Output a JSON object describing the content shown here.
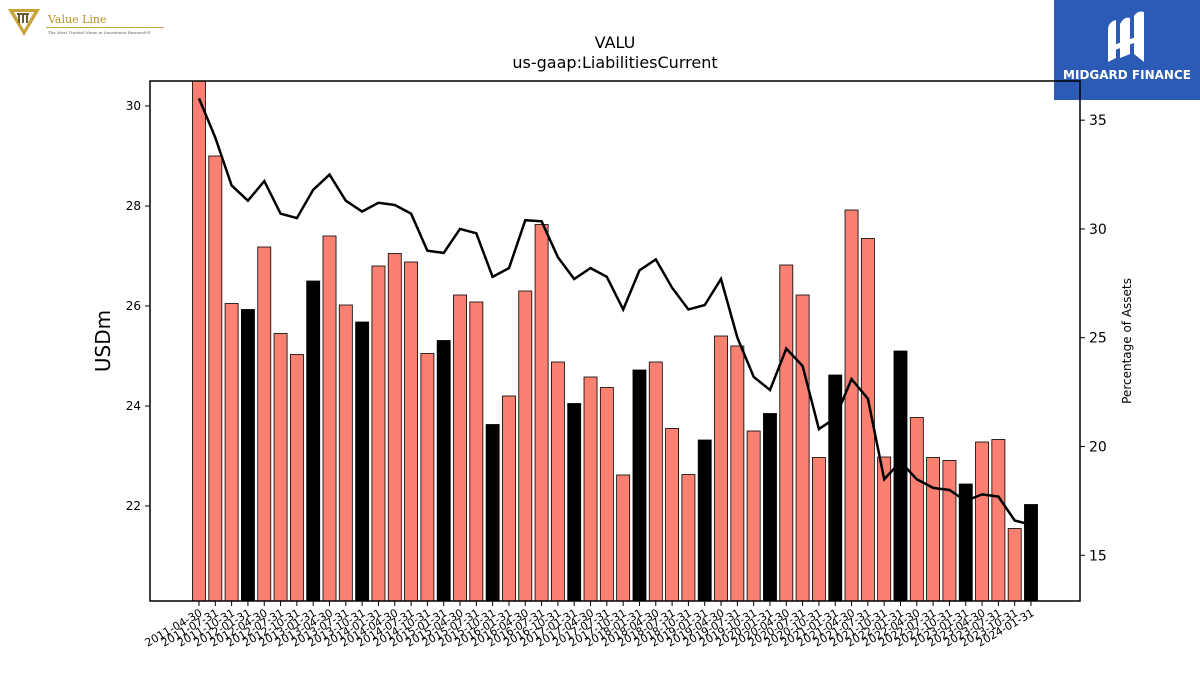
{
  "brand_left": {
    "name": "Value Line",
    "tagline": "The Most Trusted Name in Investment Research®"
  },
  "brand_right": {
    "name": "MIDGARD FINANCE"
  },
  "colors": {
    "bar_default": "#fa8072",
    "bar_highlight": "#000000",
    "line": "#000000",
    "brand_right_bg": "#2b5bb5",
    "brand_left_gold": "#b8902a"
  },
  "chart_data": {
    "type": "bar",
    "title": "VALU",
    "subtitle": "us-gaap:LiabilitiesCurrent",
    "ylabel": "USDm",
    "y2label": "Percentage of Assets",
    "ylim": [
      20.1,
      30.5
    ],
    "y2lim": [
      12.9,
      36.8
    ],
    "yticks": [
      22,
      24,
      26,
      28,
      30
    ],
    "y2ticks": [
      15,
      20,
      25,
      30,
      35
    ],
    "categories": [
      "2011-04-30",
      "2011-07-31",
      "2011-10-31",
      "2012-01-31",
      "2012-04-30",
      "2012-07-31",
      "2012-10-31",
      "2013-01-31",
      "2013-04-30",
      "2013-07-31",
      "2013-10-31",
      "2014-01-31",
      "2014-04-30",
      "2014-07-31",
      "2014-10-31",
      "2015-01-31",
      "2015-04-30",
      "2015-07-31",
      "2015-10-31",
      "2016-01-31",
      "2016-04-30",
      "2016-07-31",
      "2016-10-31",
      "2017-01-31",
      "2017-04-30",
      "2017-07-31",
      "2017-10-31",
      "2018-01-31",
      "2018-04-30",
      "2018-07-31",
      "2018-10-31",
      "2019-01-31",
      "2019-04-30",
      "2019-07-31",
      "2019-10-31",
      "2020-01-31",
      "2020-04-30",
      "2020-07-31",
      "2020-10-31",
      "2021-01-31",
      "2021-04-30",
      "2021-07-31",
      "2021-10-31",
      "2022-01-31",
      "2022-04-30",
      "2022-07-31",
      "2022-10-31",
      "2023-01-31",
      "2023-04-30",
      "2023-07-31",
      "2023-10-31",
      "2024-01-31"
    ],
    "tick_labels": [
      "2011-04-30",
      "2011-07-31",
      "2011-10-31",
      "2012-01-31",
      "2012-04-30",
      "2012-07-31",
      "2012-10-31",
      "2013-01-31",
      "2013-04-30",
      "2013-07-31",
      "2013-10-31",
      "2014-01-31",
      "2014-04-30",
      "2014-07-31",
      "2014-10-31",
      "2015-01-31",
      "2015-04-30",
      "2015-07-31",
      "2015-10-31",
      "2016-01-31",
      "2016-04-30",
      "2016-07-31",
      "2016-10-31",
      "2017-01-31",
      "2017-04-30",
      "2017-07-31",
      "2017-10-31",
      "2018-01-31",
      "2018-04-30",
      "2018-07-31",
      "2018-10-31",
      "2019-01-31",
      "2019-04-30",
      "2019-07-31",
      "2019-10-31",
      "2020-01-31",
      "2020-04-30",
      "2020-07-31",
      "2020-10-31",
      "2021-01-31",
      "2021-04-30",
      "2021-07-31",
      "2021-10-31",
      "2022-01-31",
      "2022-04-30",
      "2022-07-31",
      "2022-10-31",
      "2023-01-31",
      "2023-04-30",
      "2023-07-31",
      "2023-10-31",
      "2024-01-31"
    ],
    "series": [
      {
        "kind": "bar",
        "axis": "left",
        "values": [
          30.5,
          29.0,
          26.05,
          25.93,
          27.18,
          25.45,
          25.03,
          26.5,
          27.4,
          26.02,
          25.68,
          26.8,
          27.05,
          26.88,
          25.05,
          25.31,
          26.22,
          26.08,
          23.63,
          24.2,
          26.3,
          27.63,
          24.88,
          24.05,
          24.58,
          24.37,
          22.62,
          24.72,
          24.88,
          23.55,
          22.63,
          23.32,
          25.4,
          25.2,
          23.5,
          23.85,
          26.82,
          26.22,
          22.97,
          24.62,
          27.92,
          27.35,
          22.98,
          25.1,
          23.77,
          22.97,
          22.91,
          22.44,
          23.28,
          23.33,
          21.55,
          22.03
        ],
        "highlight": [
          false,
          false,
          false,
          true,
          false,
          false,
          false,
          true,
          false,
          false,
          true,
          false,
          false,
          false,
          false,
          true,
          false,
          false,
          true,
          false,
          false,
          false,
          false,
          true,
          false,
          false,
          false,
          true,
          false,
          false,
          false,
          true,
          false,
          false,
          false,
          true,
          false,
          false,
          false,
          true,
          false,
          false,
          false,
          true,
          false,
          false,
          false,
          true,
          false,
          false,
          false,
          true
        ]
      },
      {
        "kind": "line",
        "axis": "right",
        "values": [
          36.0,
          34.2,
          32.0,
          31.3,
          32.2,
          30.7,
          30.5,
          31.8,
          32.5,
          31.3,
          30.8,
          31.2,
          31.1,
          30.7,
          29.0,
          28.9,
          30.0,
          29.8,
          27.8,
          28.2,
          30.4,
          30.35,
          28.7,
          27.7,
          28.2,
          27.8,
          26.3,
          28.1,
          28.6,
          27.3,
          26.3,
          26.5,
          27.7,
          25.0,
          23.2,
          22.6,
          24.5,
          23.7,
          20.8,
          21.3,
          23.1,
          22.2,
          18.5,
          19.3,
          18.5,
          18.1,
          18.0,
          17.5,
          17.8,
          17.7,
          16.6,
          16.4
        ]
      }
    ],
    "grid": false
  }
}
